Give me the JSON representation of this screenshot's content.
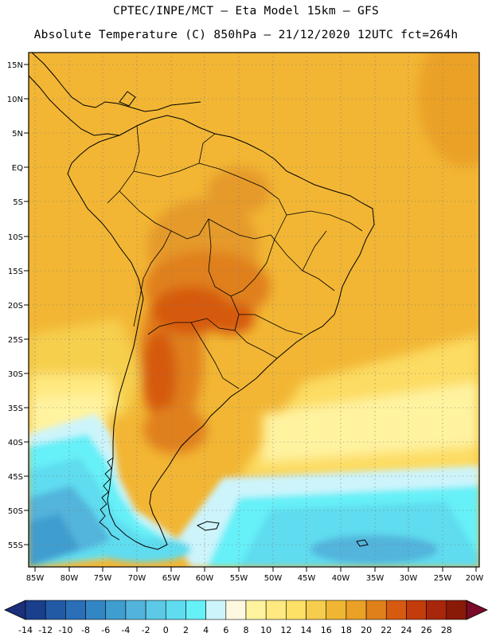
{
  "header": {
    "title_line1": "CPTEC/INPE/MCT –  Eta Model 15km – GFS",
    "title_line2": "Absolute Temperature (C) 850hPa – 21/12/2020 12UTC fct=264h"
  },
  "map": {
    "lat_labels": [
      "15N",
      "10N",
      "5N",
      "EQ",
      "5S",
      "10S",
      "15S",
      "20S",
      "25S",
      "30S",
      "35S",
      "40S",
      "45S",
      "50S",
      "55S"
    ],
    "lon_labels": [
      "85W",
      "80W",
      "75W",
      "70W",
      "65W",
      "60W",
      "55W",
      "50W",
      "45W",
      "40W",
      "35W",
      "30W",
      "25W",
      "20W"
    ]
  },
  "colorbar": {
    "labels": [
      "-14",
      "-12",
      "-10",
      "-8",
      "-6",
      "-4",
      "-2",
      "0",
      "2",
      "4",
      "6",
      "8",
      "10",
      "12",
      "14",
      "16",
      "18",
      "20",
      "22",
      "24",
      "26",
      "28"
    ],
    "colors": [
      "#1a3f8c",
      "#225aa6",
      "#2a6fb8",
      "#3386c4",
      "#3f9dcf",
      "#52b4dc",
      "#5cc9e6",
      "#5fdcef",
      "#66f0f8",
      "#cdf4fb",
      "#fff8e0",
      "#fff3a0",
      "#ffe980",
      "#fde066",
      "#f6cd4c",
      "#f0b633",
      "#eaa125",
      "#e0801a",
      "#d65a10",
      "#c23c0c",
      "#a8260a",
      "#8a1a08"
    ],
    "left_arrow_color": "#1b2f7a",
    "right_arrow_color": "#7a0a28"
  }
}
